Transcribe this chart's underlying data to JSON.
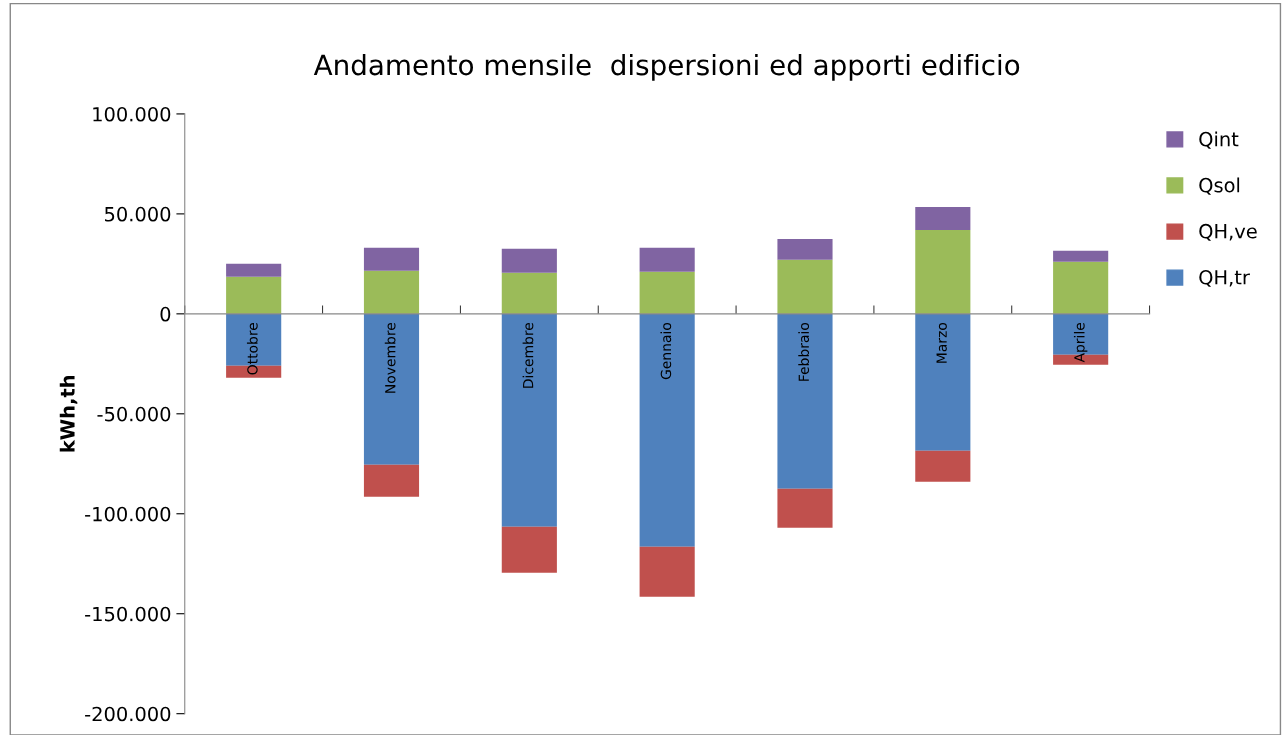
{
  "chart_data": {
    "type": "bar",
    "title": "Andamento mensile  dispersioni ed apporti edificio",
    "ylabel": "kWh,th",
    "stacked": true,
    "legend": "right",
    "grid": false,
    "categories": [
      "Ottobre",
      "Novembre",
      "Dicembre",
      "Gennaio",
      "Febbraio",
      "Marzo",
      "Aprile"
    ],
    "series": [
      {
        "name": "QH,tr",
        "color": "#4f81bd",
        "values": [
          -26000,
          -75500,
          -106500,
          -116500,
          -87500,
          -68500,
          -20500
        ]
      },
      {
        "name": "QH,ve",
        "color": "#c0504d",
        "values": [
          -6000,
          -16000,
          -23000,
          -25000,
          -19500,
          -15500,
          -5000
        ]
      },
      {
        "name": "Qsol",
        "color": "#9bbb59",
        "values": [
          18500,
          21500,
          20500,
          21000,
          27000,
          42000,
          26000
        ]
      },
      {
        "name": "Qint",
        "color": "#8064a2",
        "values": [
          6500,
          11500,
          12000,
          12000,
          10500,
          11500,
          5500
        ]
      }
    ],
    "ylim": [
      -200000,
      100000
    ],
    "yticks": [
      {
        "value": -200000,
        "label": "-200.000"
      },
      {
        "value": -150000,
        "label": "-150.000"
      },
      {
        "value": -100000,
        "label": "-100.000"
      },
      {
        "value": -50000,
        "label": "-50.000"
      },
      {
        "value": 0,
        "label": "0"
      },
      {
        "value": 50000,
        "label": "50.000"
      },
      {
        "value": 100000,
        "label": "100.000"
      }
    ]
  }
}
